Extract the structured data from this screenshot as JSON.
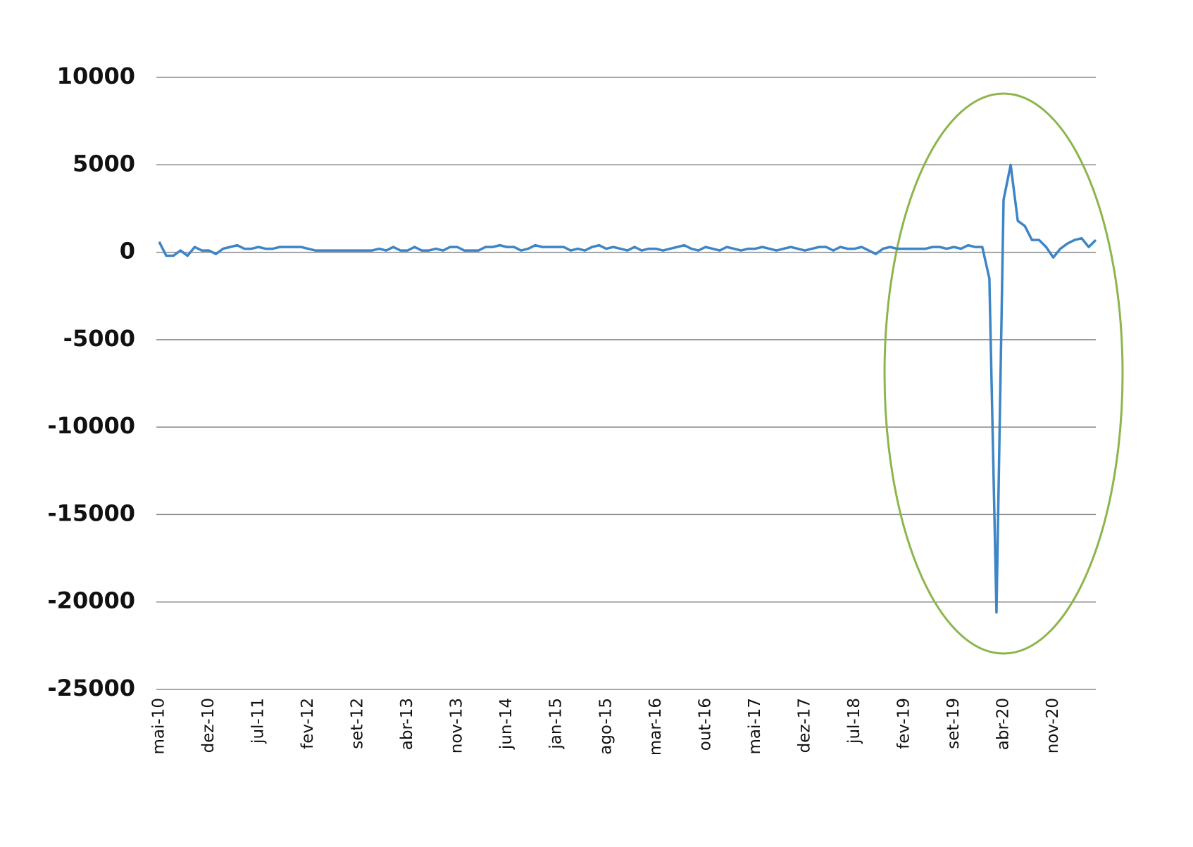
{
  "chart_data": {
    "type": "line",
    "categories": [
      "mai-10",
      null,
      null,
      null,
      null,
      null,
      null,
      "dez-10",
      null,
      null,
      null,
      null,
      null,
      null,
      "jul-11",
      null,
      null,
      null,
      null,
      null,
      null,
      "fev-12",
      null,
      null,
      null,
      null,
      null,
      null,
      "set-12",
      null,
      null,
      null,
      null,
      null,
      null,
      "abr-13",
      null,
      null,
      null,
      null,
      null,
      null,
      "nov-13",
      null,
      null,
      null,
      null,
      null,
      null,
      "jun-14",
      null,
      null,
      null,
      null,
      null,
      null,
      "jan-15",
      null,
      null,
      null,
      null,
      null,
      null,
      "ago-15",
      null,
      null,
      null,
      null,
      null,
      null,
      "mar-16",
      null,
      null,
      null,
      null,
      null,
      null,
      "out-16",
      null,
      null,
      null,
      null,
      null,
      null,
      "mai-17",
      null,
      null,
      null,
      null,
      null,
      null,
      "dez-17",
      null,
      null,
      null,
      null,
      null,
      null,
      "jul-18",
      null,
      null,
      null,
      null,
      null,
      null,
      "fev-19",
      null,
      null,
      null,
      null,
      null,
      null,
      "set-19",
      null,
      null,
      null,
      null,
      null,
      null,
      "abr-20",
      null,
      null,
      null,
      null,
      null,
      null,
      "nov-20",
      null,
      null,
      null,
      null,
      null,
      null
    ],
    "series": [
      {
        "color": "#3d85c6",
        "values": [
          600,
          -200,
          -200,
          100,
          -200,
          300,
          100,
          100,
          -100,
          200,
          300,
          400,
          200,
          200,
          300,
          200,
          200,
          300,
          300,
          300,
          300,
          200,
          100,
          100,
          100,
          100,
          100,
          100,
          100,
          100,
          100,
          200,
          100,
          300,
          100,
          100,
          300,
          100,
          100,
          200,
          100,
          300,
          300,
          100,
          100,
          100,
          300,
          300,
          400,
          300,
          300,
          100,
          200,
          400,
          300,
          300,
          300,
          300,
          100,
          200,
          100,
          300,
          400,
          200,
          300,
          200,
          100,
          300,
          100,
          200,
          200,
          100,
          200,
          300,
          400,
          200,
          100,
          300,
          200,
          100,
          300,
          200,
          100,
          200,
          200,
          300,
          200,
          100,
          200,
          300,
          200,
          100,
          200,
          300,
          300,
          100,
          300,
          200,
          200,
          300,
          100,
          -100,
          200,
          300,
          200,
          200,
          200,
          200,
          200,
          300,
          300,
          200,
          300,
          200,
          400,
          300,
          300,
          -1500,
          -20600,
          3000,
          5000,
          1800,
          1500,
          700,
          700,
          300,
          -300,
          200,
          500,
          700,
          800,
          300,
          700
        ]
      }
    ],
    "ylim": [
      -25000,
      10000
    ],
    "yticks": [
      -25000,
      -20000,
      -15000,
      -10000,
      -5000,
      0,
      5000,
      10000
    ],
    "grid": true
  }
}
